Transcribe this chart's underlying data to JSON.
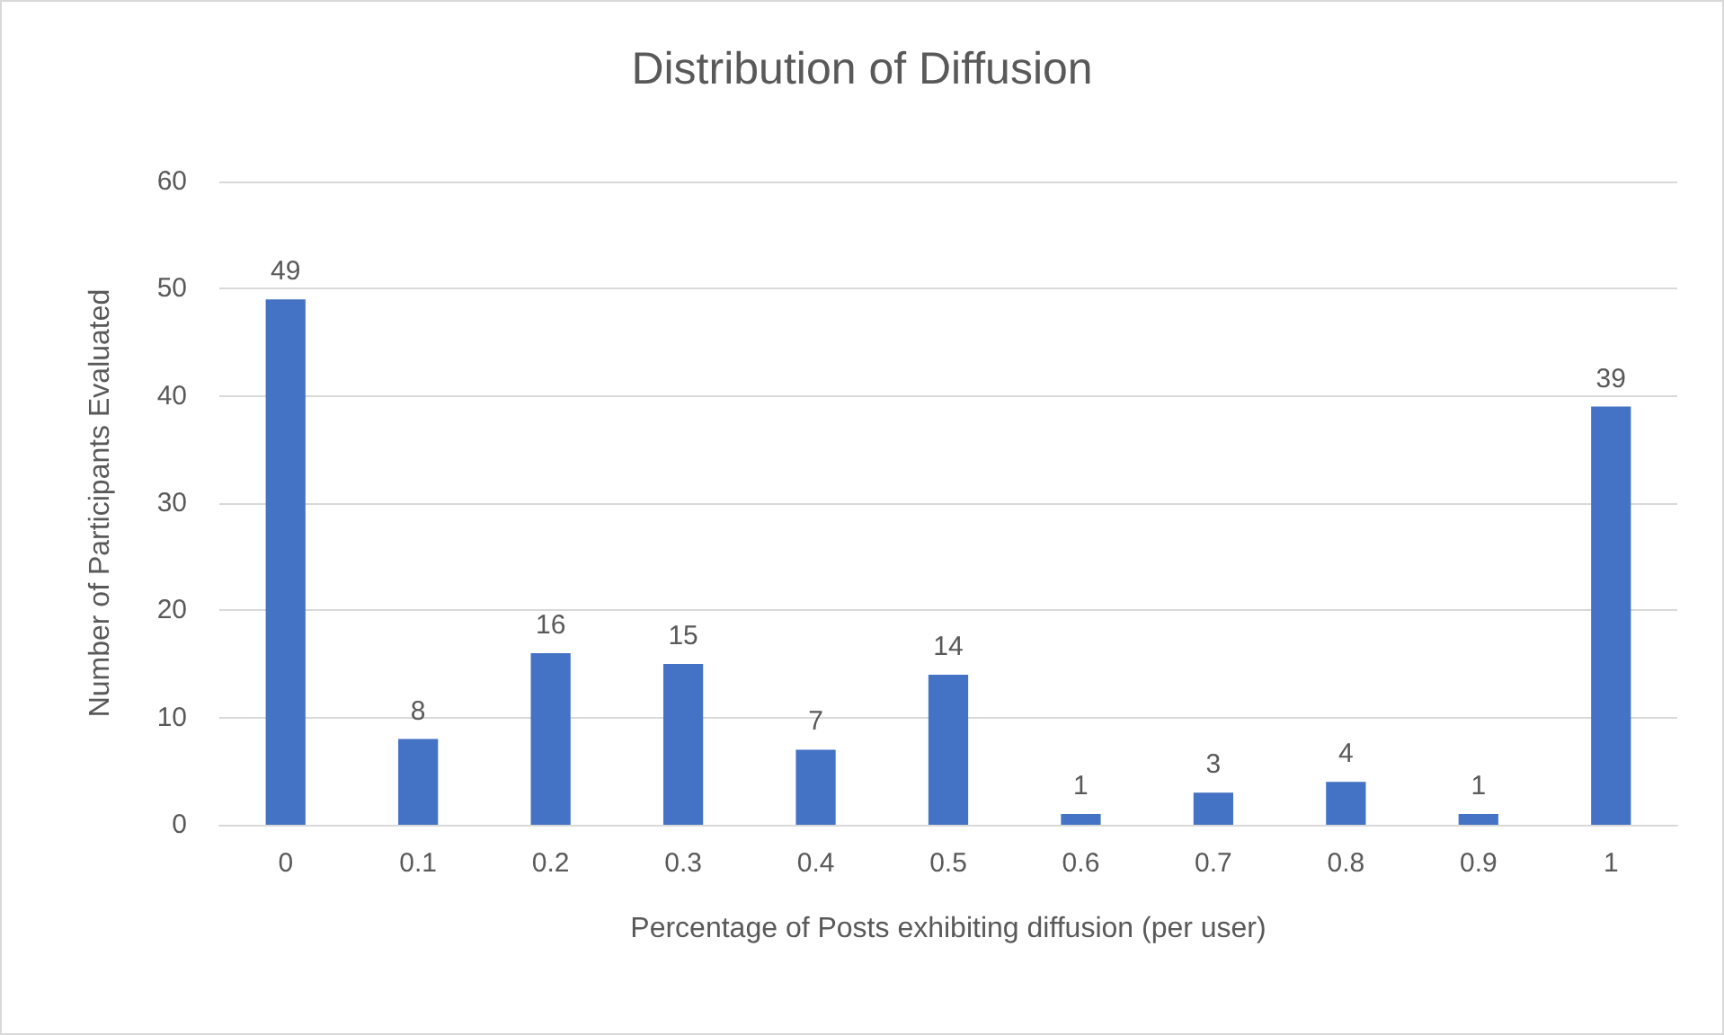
{
  "chart_data": {
    "type": "bar",
    "title": "Distribution of Diffusion",
    "xlabel": "Percentage of Posts exhibiting diffusion (per user)",
    "ylabel": "Number of Participants Evaluated",
    "categories": [
      "0",
      "0.1",
      "0.2",
      "0.3",
      "0.4",
      "0.5",
      "0.6",
      "0.7",
      "0.8",
      "0.9",
      "1"
    ],
    "values": [
      49,
      8,
      16,
      15,
      7,
      14,
      1,
      3,
      4,
      1,
      39
    ],
    "color": "#4472c4",
    "ylim": [
      0,
      60
    ],
    "yticks": [
      0,
      10,
      20,
      30,
      40,
      50,
      60
    ],
    "grid": "y",
    "data_labels": true
  }
}
